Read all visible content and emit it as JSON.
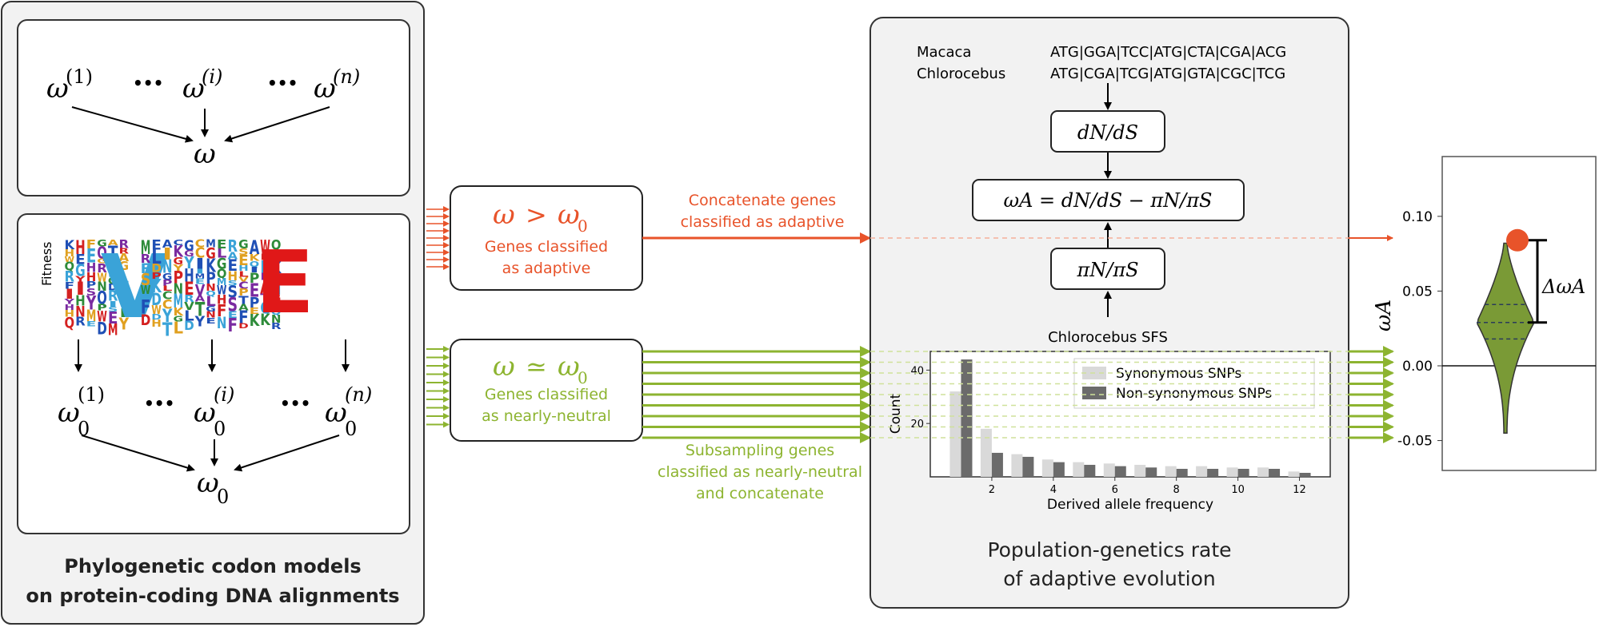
{
  "left_panel": {
    "caption_line1": "Phylogenetic codon models",
    "caption_line2": "on protein-coding DNA alignments",
    "top_box": {
      "omega_base": "ω",
      "sup_1": "(1)",
      "sup_i": "(i)",
      "sup_n": "(n)",
      "ellipsis": "•••",
      "result": "ω"
    },
    "bottom_box": {
      "logo_axis_label": "Fitness",
      "omega0_base": "ω",
      "sub_0": "0",
      "sup_1": "(1)",
      "sup_i": "(i)",
      "sup_n": "(n)",
      "ellipsis": "•••",
      "result_base": "ω",
      "result_sub": "0"
    }
  },
  "middle": {
    "adaptive_box": {
      "formula_left": "ω",
      "formula_op": ">",
      "formula_right": "ω",
      "formula_right_sub": "0",
      "label_line1": "Genes classified",
      "label_line2": "as adaptive"
    },
    "adaptive_arrow_label_line1": "Concatenate genes",
    "adaptive_arrow_label_line2": "classified as adaptive",
    "neutral_box": {
      "formula_left": "ω",
      "formula_op": "≃",
      "formula_right": "ω",
      "formula_right_sub": "0",
      "label_line1": "Genes classified",
      "label_line2": "as nearly-neutral"
    },
    "neutral_arrow_label_line1": "Subsampling genes",
    "neutral_arrow_label_line2": "classified as nearly-neutral",
    "neutral_arrow_label_line3": "and concatenate"
  },
  "right_panel": {
    "species1": "Macaca",
    "species2": "Chlorocebus",
    "seq1": "ATG|GGA|TCC|ATG|CTA|CGA|ACG",
    "seq2": "ATG|CGA|TCG|ATG|GTA|CGC|TCG",
    "dnds": "dN/dS",
    "omega_a_formula": "ωA = dN/dS − πN/πS",
    "pin_pis": "πN/πS",
    "sfs_label": "Chlorocebus SFS",
    "caption_line1": "Population-genetics rate",
    "caption_line2": "of adaptive evolution"
  },
  "chart_data": [
    {
      "type": "bar",
      "title": "",
      "xlabel": "Derived allele frequency",
      "ylabel": "Count",
      "categories": [
        1,
        2,
        3,
        4,
        5,
        6,
        7,
        8,
        9,
        10,
        11,
        12
      ],
      "xticks": [
        "2",
        "4",
        "6",
        "8",
        "10",
        "12"
      ],
      "yticks": [
        "20",
        "40"
      ],
      "ylim": [
        0,
        47
      ],
      "legend_position": "top-right",
      "series": [
        {
          "name": "Synonymous SNPs",
          "color": "#d9d9d9",
          "values": [
            32,
            18,
            8.5,
            6.5,
            5.5,
            5,
            4.5,
            4,
            4,
            3.5,
            3.5,
            2
          ]
        },
        {
          "name": "Non-synonymous SNPs",
          "color": "#6b6b6b",
          "values": [
            44,
            9,
            7.5,
            5.5,
            4.5,
            4,
            3.5,
            3,
            3,
            3,
            3,
            1.5
          ]
        }
      ]
    },
    {
      "type": "violin",
      "title": "",
      "ylabel": "ωA",
      "yticks": [
        "0.10",
        "0.05",
        "0.00",
        "-0.05"
      ],
      "ylim": [
        -0.07,
        0.14
      ],
      "grid": false,
      "point_estimate": 0.084,
      "violin": {
        "min": -0.045,
        "max": 0.082,
        "q1": 0.018,
        "median": 0.029,
        "q3": 0.041,
        "color": "#7a9a36"
      },
      "point_color": "#e8532a",
      "annotation": "ΔωA"
    }
  ],
  "colors": {
    "adaptive": "#e8532a",
    "neutral": "#8db430",
    "panel_bg": "#f2f2f2",
    "border": "#333333"
  }
}
